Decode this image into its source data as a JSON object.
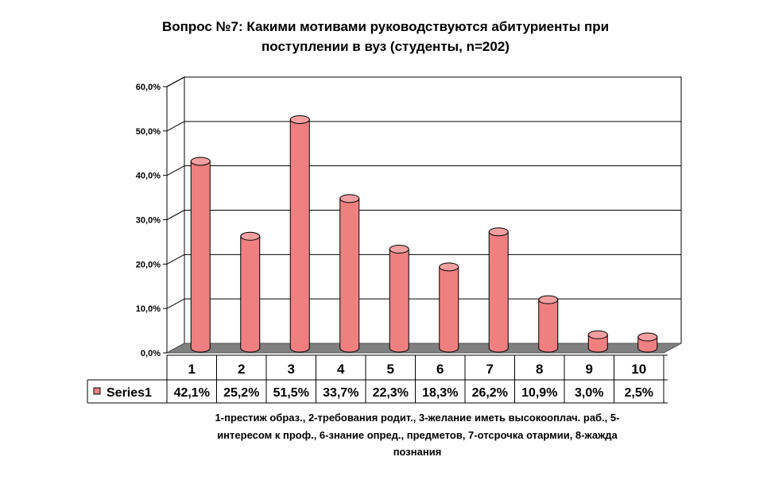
{
  "chart_data": {
    "type": "bar",
    "title_lines": [
      "Вопрос №7: Какими мотивами руководствуются абитуриенты при",
      "поступлении в вуз (студенты, n=202)"
    ],
    "categories": [
      "1",
      "2",
      "3",
      "4",
      "5",
      "6",
      "7",
      "8",
      "9",
      "10"
    ],
    "series": [
      {
        "name": "Series1",
        "values": [
          42.1,
          25.2,
          51.5,
          33.7,
          22.3,
          18.3,
          26.2,
          10.9,
          3.0,
          2.5
        ],
        "value_labels": [
          "42,1%",
          "25,2%",
          "51,5%",
          "33,7%",
          "22,3%",
          "18,3%",
          "26,2%",
          "10,9%",
          "3,0%",
          "2,5%"
        ],
        "color": "#f08080"
      }
    ],
    "y_ticks": [
      "0,0%",
      "10,0%",
      "20,0%",
      "30,0%",
      "40,0%",
      "50,0%",
      "60,0%"
    ],
    "ylim": [
      0,
      60
    ],
    "grid": true,
    "legend": "data-table",
    "note_lines": [
      "1-престиж образ., 2-требования родит., 3-желание иметь высокооплач. раб., 5-",
      "интересом к проф., 6-знание опред., предметов, 7-отсрочка отармии, 8-жажда",
      "познания"
    ],
    "colors": {
      "bar_fill": "#f08080",
      "bar_dark": "#c85050",
      "bar_top": "#f4a0a0",
      "floor": "#808080"
    }
  }
}
